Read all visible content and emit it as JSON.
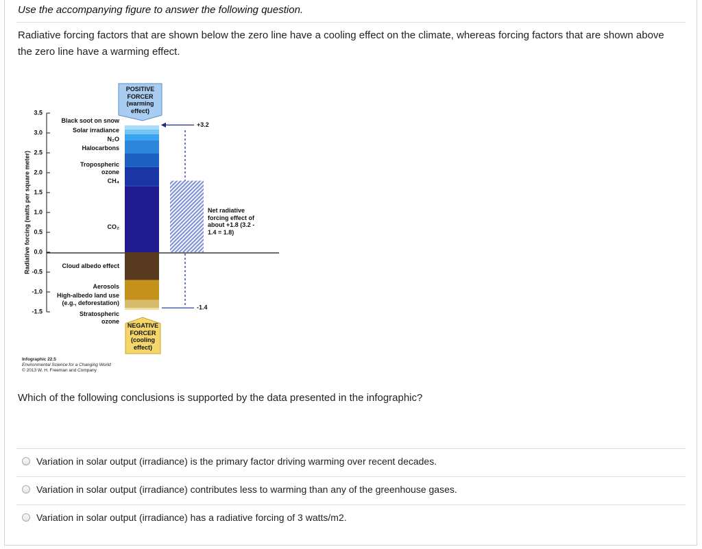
{
  "header": {
    "instruction": "Use the accompanying figure to answer the following question."
  },
  "question": {
    "intro": "Radiative forcing factors that are shown below the zero line have a cooling effect on the climate, whereas forcing factors that are shown above the zero line have a warming effect.",
    "prompt": "Which of the following conclusions is supported by the data presented in the infographic?"
  },
  "options": [
    "Variation in solar output (irradiance) is the primary factor driving warming over recent decades.",
    "Variation in solar output (irradiance) contributes less to warming than any of the greenhouse gases.",
    "Variation in solar output (irradiance) has a radiative forcing of 3 watts/m2."
  ],
  "chart_data": {
    "type": "stacked_bar",
    "ylabel": "Radiative forcing (watts per square meter)",
    "ylim": [
      -1.5,
      3.5
    ],
    "yticks": [
      3.5,
      {
        "value": 3,
        "label": "3.0"
      },
      2.5,
      {
        "value": 2,
        "label": "2.0"
      },
      1.5,
      {
        "value": 1,
        "label": "1.0"
      },
      0.5,
      {
        "value": 0,
        "label": "0.0"
      },
      -0.5,
      {
        "value": -1,
        "label": "-1.0"
      },
      -1.5
    ],
    "categories": [
      null
    ],
    "series": [
      {
        "name": "CO₂",
        "color": "#1f1b8e",
        "values": [
          1.66
        ]
      },
      {
        "name": "CH₄",
        "color": "#1a36a6",
        "values": [
          0.48
        ]
      },
      {
        "name": "Tropospheric ozone",
        "color": "#1b5fbf",
        "values": [
          0.35
        ]
      },
      {
        "name": "Halocarbons",
        "color": "#2b86dc",
        "values": [
          0.32
        ]
      },
      {
        "name": "N₂O",
        "color": "#3ca4ee",
        "values": [
          0.16
        ]
      },
      {
        "name": "Solar irradiance",
        "color": "#72c4f4",
        "values": [
          0.12
        ]
      },
      {
        "name": "Black soot on snow",
        "color": "#a9dcf8",
        "values": [
          0.1
        ]
      },
      {
        "name": "Cloud albedo effect",
        "color": "#573a20",
        "values": [
          -0.7
        ]
      },
      {
        "name": "Aerosols",
        "color": "#c4921a",
        "values": [
          -0.5
        ]
      },
      {
        "name": "High-albedo land use (e.g., deforestation)",
        "color": "#d8bb6a",
        "values": [
          -0.2
        ]
      },
      {
        "name": "Stratospheric ozone",
        "color": "#ecdca6",
        "values": [
          -0.05
        ]
      }
    ],
    "total_positive": {
      "value": 3.2,
      "label": "+3.2"
    },
    "total_negative": {
      "value": -1.4,
      "label": "-1.4"
    },
    "net": {
      "value": 1.8,
      "color": "#7f93d6",
      "label": "Net radiative forcing effect of about +1.8 (3.2 - 1.4 = 1.8)"
    },
    "positive_box": "POSITIVE FORCER (warming effect)",
    "negative_box": "NEGATIVE FORCER (cooling effect)",
    "credits": [
      "Infographic 22.5",
      "Environmental Science for a Changing World",
      "© 2013 W. H. Freeman and Company"
    ]
  }
}
